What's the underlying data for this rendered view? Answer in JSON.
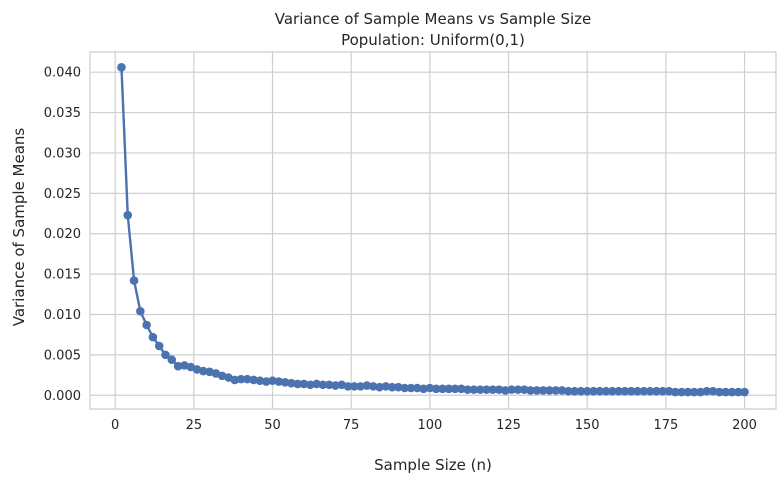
{
  "chart_data": {
    "type": "line",
    "title": "Variance of Sample Means vs Sample Size",
    "subtitle": "Population: Uniform(0,1)",
    "xlabel": "Sample Size (n)",
    "ylabel": "Variance of Sample Means",
    "xlim": [
      -8,
      210
    ],
    "ylim": [
      -0.0017,
      0.0425
    ],
    "xticks": [
      0,
      25,
      50,
      75,
      100,
      125,
      150,
      175,
      200
    ],
    "xtick_labels": [
      "0",
      "25",
      "50",
      "75",
      "100",
      "125",
      "150",
      "175",
      "200"
    ],
    "yticks": [
      0.0,
      0.005,
      0.01,
      0.015,
      0.02,
      0.025,
      0.03,
      0.035,
      0.04
    ],
    "ytick_labels": [
      "0.000",
      "0.005",
      "0.010",
      "0.015",
      "0.020",
      "0.025",
      "0.030",
      "0.035",
      "0.040"
    ],
    "grid": true,
    "legend": "none",
    "series": [
      {
        "color": "#4c72b0",
        "marker": "circle",
        "x": [
          2,
          4,
          6,
          8,
          10,
          12,
          14,
          16,
          18,
          20,
          22,
          24,
          26,
          28,
          30,
          32,
          34,
          36,
          38,
          40,
          42,
          44,
          46,
          48,
          50,
          52,
          54,
          56,
          58,
          60,
          62,
          64,
          66,
          68,
          70,
          72,
          74,
          76,
          78,
          80,
          82,
          84,
          86,
          88,
          90,
          92,
          94,
          96,
          98,
          100,
          102,
          104,
          106,
          108,
          110,
          112,
          114,
          116,
          118,
          120,
          122,
          124,
          126,
          128,
          130,
          132,
          134,
          136,
          138,
          140,
          142,
          144,
          146,
          148,
          150,
          152,
          154,
          156,
          158,
          160,
          162,
          164,
          166,
          168,
          170,
          172,
          174,
          176,
          178,
          180,
          182,
          184,
          186,
          188,
          190,
          192,
          194,
          196,
          198,
          200
        ],
        "y": [
          0.0406,
          0.0223,
          0.0142,
          0.0104,
          0.0087,
          0.0072,
          0.0061,
          0.005,
          0.0044,
          0.0036,
          0.0037,
          0.0035,
          0.0032,
          0.003,
          0.0029,
          0.0027,
          0.0024,
          0.0022,
          0.0019,
          0.002,
          0.002,
          0.0019,
          0.0018,
          0.0017,
          0.0018,
          0.0017,
          0.0016,
          0.0015,
          0.0014,
          0.0014,
          0.0013,
          0.0014,
          0.0013,
          0.0013,
          0.0012,
          0.0013,
          0.0011,
          0.0011,
          0.0011,
          0.0012,
          0.0011,
          0.001,
          0.0011,
          0.001,
          0.001,
          0.0009,
          0.0009,
          0.0009,
          0.0008,
          0.0009,
          0.0008,
          0.0008,
          0.0008,
          0.0008,
          0.0008,
          0.0007,
          0.0007,
          0.0007,
          0.0007,
          0.0007,
          0.0007,
          0.0006,
          0.0007,
          0.0007,
          0.0007,
          0.0006,
          0.0006,
          0.0006,
          0.0006,
          0.0006,
          0.0006,
          0.0005,
          0.0005,
          0.0005,
          0.0005,
          0.0005,
          0.0005,
          0.0005,
          0.0005,
          0.0005,
          0.0005,
          0.0005,
          0.0005,
          0.0005,
          0.0005,
          0.0005,
          0.0005,
          0.0005,
          0.0004,
          0.0004,
          0.0004,
          0.0004,
          0.0004,
          0.0005,
          0.0005,
          0.0004,
          0.0004,
          0.0004,
          0.0004,
          0.0004
        ]
      }
    ]
  }
}
